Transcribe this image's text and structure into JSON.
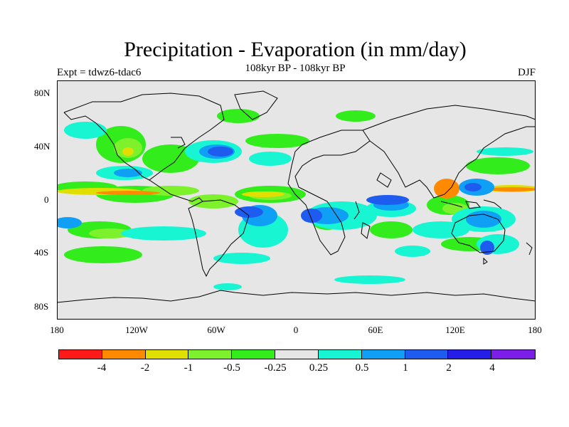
{
  "title": "Precipitation - Evaporation (in mm/day)",
  "subtitle": "108kyr BP - 108kyr BP",
  "expt_label": "Expt = tdwz6-tdac6",
  "season": "DJF",
  "y_ticks": [
    "80N",
    "40N",
    "0",
    "40S",
    "80S"
  ],
  "x_ticks": [
    "180",
    "120W",
    "60W",
    "0",
    "60E",
    "120E",
    "180"
  ],
  "colorbar": {
    "colors": [
      "#ff1a1a",
      "#ff8a00",
      "#e0df00",
      "#7df22c",
      "#33ec1c",
      "#e6e6e6",
      "#18f5d3",
      "#0fa0f5",
      "#1e5cf0",
      "#241ee8",
      "#7a1ee8"
    ],
    "labels": [
      "-4",
      "-2",
      "-1",
      "-0.5",
      "-0.25",
      "0.25",
      "0.5",
      "1",
      "2",
      "4"
    ]
  },
  "colors": {
    "background": "#e6e6e6",
    "coast": "#000000"
  }
}
